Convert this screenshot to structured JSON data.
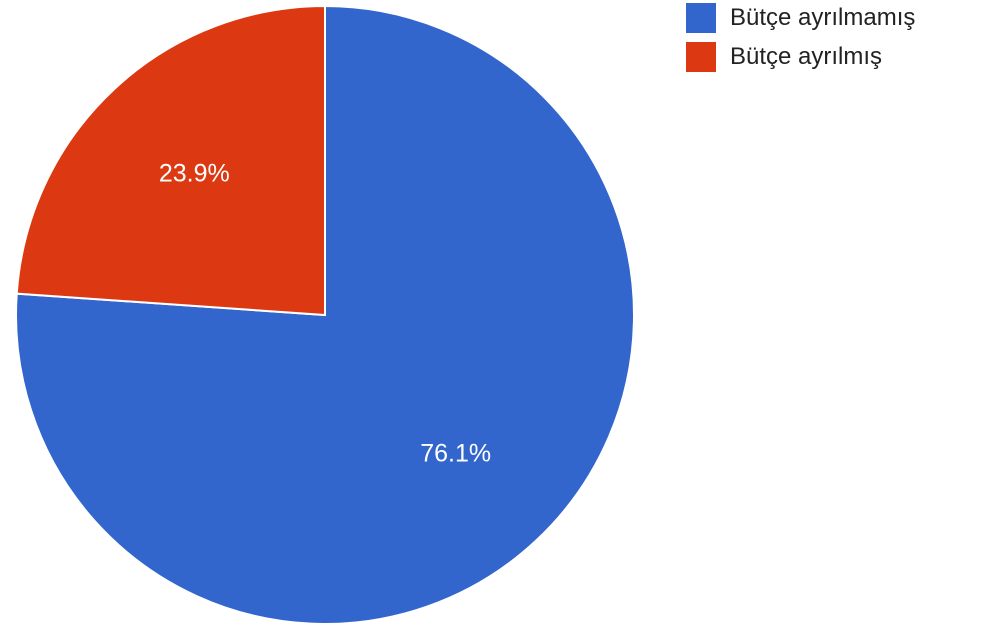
{
  "chart_data": {
    "type": "pie",
    "title": "",
    "slices": [
      {
        "label": "Bütçe ayrılmamış",
        "value": 76.1,
        "display": "76.1%",
        "color": "#3366cc"
      },
      {
        "label": "Bütçe ayrılmış",
        "value": 23.9,
        "display": "23.9%",
        "color": "#dc3912"
      }
    ],
    "legend_position": "right",
    "start_angle_deg": 0,
    "direction": "clockwise",
    "slice_border_color": "#ffffff",
    "label_color": "#ffffff"
  }
}
